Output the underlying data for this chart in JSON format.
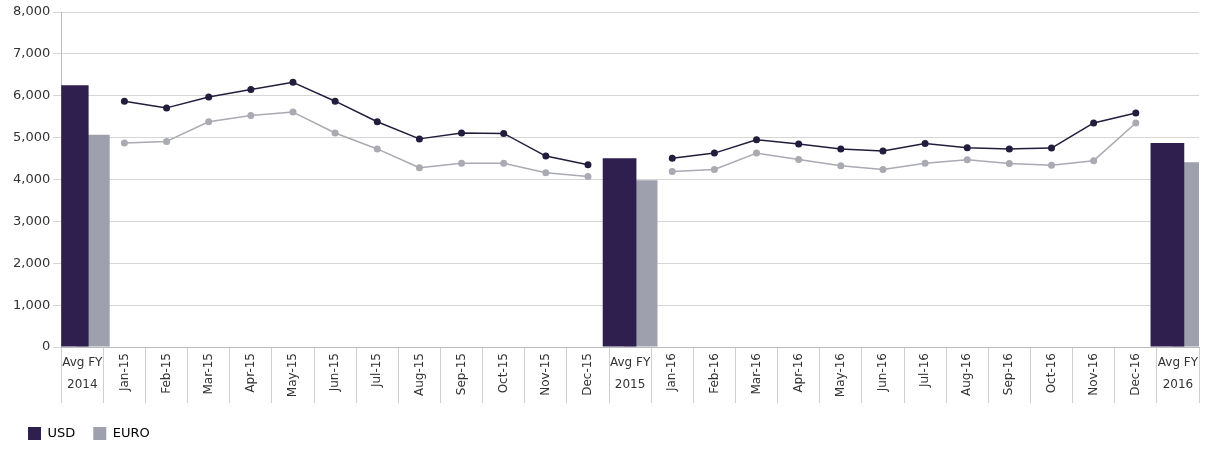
{
  "chart_data": {
    "type": "line",
    "categories": [
      "Avg FY\n2014",
      "Jan-15",
      "Feb-15",
      "Mar-15",
      "Apr-15",
      "May-15",
      "Jun-15",
      "Jul-15",
      "Aug-15",
      "Sep-15",
      "Oct-15",
      "Nov-15",
      "Dec-15",
      "Avg FY\n2015",
      "Jan-16",
      "Feb-16",
      "Mar-16",
      "Apr-16",
      "May-16",
      "Jun-16",
      "Jul-16",
      "Aug-16",
      "Sep-16",
      "Oct-16",
      "Nov-16",
      "Dec-16",
      "Avg FY\n2016"
    ],
    "series": [
      {
        "name": "USD",
        "type": "bar",
        "color": "#2e1f4f",
        "values": [
          6250,
          null,
          null,
          null,
          null,
          null,
          null,
          null,
          null,
          null,
          null,
          null,
          null,
          4510,
          null,
          null,
          null,
          null,
          null,
          null,
          null,
          null,
          null,
          null,
          null,
          null,
          4870
        ]
      },
      {
        "name": "EURO",
        "type": "bar",
        "color": "#9ea1ad",
        "values": [
          5070,
          null,
          null,
          null,
          null,
          null,
          null,
          null,
          null,
          null,
          null,
          null,
          null,
          3980,
          null,
          null,
          null,
          null,
          null,
          null,
          null,
          null,
          null,
          null,
          null,
          null,
          4410
        ]
      },
      {
        "color": "#231d3d",
        "values": [
          null,
          5870,
          5710,
          5970,
          6150,
          6320,
          5870,
          5380,
          4970,
          5110,
          5100,
          4560,
          4350,
          null,
          4510,
          4630,
          4950,
          4850,
          4730,
          4680,
          4860,
          4760,
          4730,
          4750,
          5350,
          5590,
          null
        ]
      },
      {
        "color": "#a9aab2",
        "values": [
          null,
          4870,
          4910,
          5380,
          5530,
          5610,
          5110,
          4730,
          4280,
          4390,
          4390,
          4160,
          4070,
          null,
          4190,
          4240,
          4630,
          4480,
          4330,
          4240,
          4390,
          4470,
          4380,
          4340,
          4450,
          5350,
          null
        ]
      }
    ],
    "ylim": [
      0,
      8000
    ],
    "yticks": [
      0,
      {
        "value": 1000,
        "label": "1,000"
      },
      {
        "value": 2000,
        "label": "2,000"
      },
      {
        "value": 3000,
        "label": "3,000"
      },
      {
        "value": 4000,
        "label": "4,000"
      },
      {
        "value": 5000,
        "label": "5,000"
      },
      {
        "value": 6000,
        "label": "6,000"
      },
      {
        "value": 7000,
        "label": "7,000"
      },
      {
        "value": 8000,
        "label": "8,000"
      }
    ],
    "grid": "y",
    "legend": "bottom left",
    "marker": "circle"
  }
}
